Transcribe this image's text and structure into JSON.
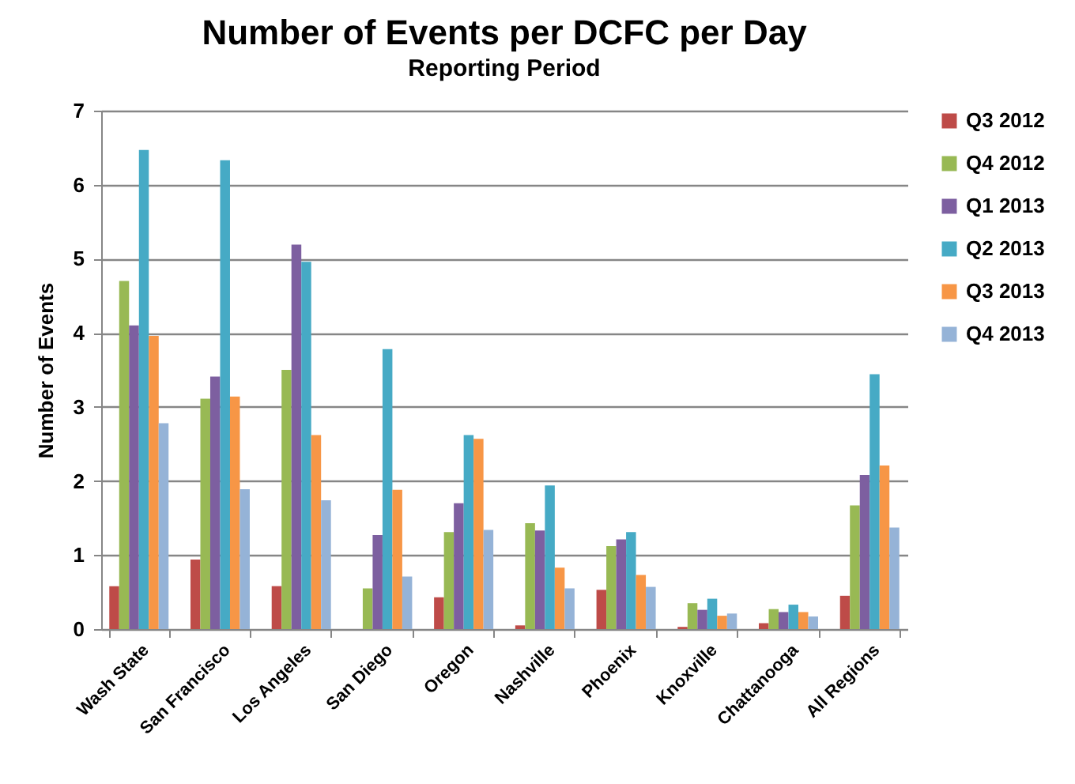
{
  "chart_data": {
    "type": "bar",
    "title": "Number of Events per DCFC per Day",
    "subtitle": "Reporting Period",
    "ylabel": "Number of Events",
    "categories": [
      "Wash State",
      "San Francisco",
      "Los Angeles",
      "San Diego",
      "Oregon",
      "Nashville",
      "Phoenix",
      "Knoxville",
      "Chattanooga",
      "All Regions"
    ],
    "series": [
      {
        "name": "Q3 2012",
        "color": "#be4b48",
        "values": [
          0.58,
          0.94,
          0.58,
          null,
          0.43,
          0.05,
          0.53,
          0.03,
          0.08,
          0.45
        ]
      },
      {
        "name": "Q4 2012",
        "color": "#98b954",
        "values": [
          4.7,
          3.11,
          3.5,
          0.55,
          1.31,
          1.43,
          1.12,
          0.35,
          0.27,
          1.67
        ]
      },
      {
        "name": "Q1 2013",
        "color": "#7d5fa0",
        "values": [
          4.1,
          3.41,
          5.19,
          1.27,
          1.7,
          1.33,
          1.21,
          0.26,
          0.23,
          2.08
        ]
      },
      {
        "name": "Q2 2013",
        "color": "#46aac5",
        "values": [
          6.47,
          6.33,
          4.96,
          3.78,
          2.62,
          1.94,
          1.31,
          0.41,
          0.33,
          3.44
        ]
      },
      {
        "name": "Q3 2013",
        "color": "#f79646",
        "values": [
          3.96,
          3.14,
          2.62,
          1.88,
          2.57,
          0.83,
          0.73,
          0.18,
          0.23,
          2.21
        ]
      },
      {
        "name": "Q4 2013",
        "color": "#95b3d7",
        "values": [
          2.78,
          1.89,
          1.74,
          0.71,
          1.34,
          0.55,
          0.57,
          0.21,
          0.17,
          1.37
        ]
      }
    ],
    "ylim": [
      0,
      7
    ],
    "yticks": [
      0,
      1,
      2,
      3,
      4,
      5,
      6,
      7
    ],
    "grid": "y",
    "legend": "right"
  }
}
